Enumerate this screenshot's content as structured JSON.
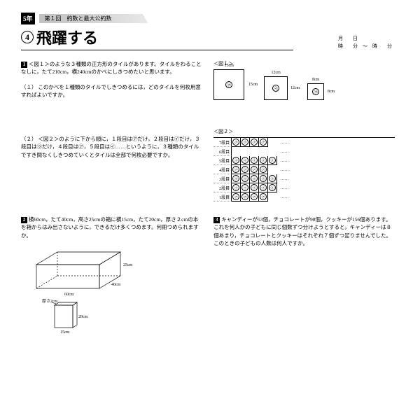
{
  "header": {
    "grade": "5年",
    "lesson": "第１回　約数と最大公約数",
    "level_num": "4",
    "level_title": "飛躍する",
    "date_line1": "月　　日",
    "date_line2": "時　　分　～　時　　分"
  },
  "p1": {
    "num": "1",
    "text": "＜図１＞のような３種類の正方形のタイルがあります。タイルをわることなしに，たて210cm，横240cmのかべにしきつめたいと思います。",
    "q1_label": "（１）",
    "q1": "このかべを１種類のタイルでしきつめるには，どのタイルを何枚用意すればよいですか。",
    "q2_label": "（２）",
    "q2": "＜図２＞のように下から順に，１段目は㋐だけ，２段目は㋑だけ，３段目は㋒だけ，４段目は㋐，５段目は㋑……というように，３種類のタイルですき間なくしきつめていくとタイルは全部で何枚必要ですか。",
    "fig1_label": "＜図１＞",
    "fig2_label": "＜図２＞",
    "tiles": {
      "a": {
        "size": 42,
        "wlabel": "15cm",
        "hlabel": "15cm",
        "mark": "㋐"
      },
      "b": {
        "size": 32,
        "wlabel": "12cm",
        "hlabel": "12cm",
        "mark": "㋑"
      },
      "c": {
        "size": 22,
        "wlabel": "8cm",
        "hlabel": "8cm",
        "mark": "㋒"
      }
    },
    "gridRows": [
      {
        "h": "7段目",
        "cells": [
          "㋐",
          "㋐",
          "㋐",
          "㋐",
          ""
        ],
        "dots": "……"
      },
      {
        "h": "6段目",
        "cells": [
          "",
          "",
          "",
          "",
          ""
        ],
        "dots": "……"
      },
      {
        "h": "5段目",
        "cells": [
          "㋑",
          "㋑",
          "㋑",
          "㋑",
          "㋑"
        ],
        "dots": "……"
      },
      {
        "h": "4段目",
        "cells": [
          "㋐",
          "㋐",
          "㋐",
          "㋐",
          ""
        ],
        "dots": "……"
      },
      {
        "h": "3段目",
        "cells": [
          "㋒",
          "㋒",
          "㋒",
          "㋒",
          "㋒"
        ],
        "dots": "……"
      },
      {
        "h": "2段目",
        "cells": [
          "㋑",
          "㋑",
          "㋑",
          "㋑",
          "㋑"
        ],
        "dots": "……"
      },
      {
        "h": "1段目",
        "cells": [
          "㋐",
          "㋐",
          "㋐",
          "㋐",
          ""
        ],
        "dots": "……"
      }
    ]
  },
  "p2": {
    "num": "2",
    "text": "横60cm，たて40cm，高さ25cmの箱に横15cm，たて20cm，厚さ２cmの本を箱からはみ出さないように，できるだけ多くつめます。何冊つめられますか。",
    "box": {
      "w": "60cm",
      "d": "40cm",
      "h": "25cm"
    },
    "book": {
      "w": "15cm",
      "d": "20cm",
      "t": "厚さ2cm"
    }
  },
  "p3": {
    "num": "3",
    "text": "キャンディーが53個，チョコレートが98個，クッキーが156個あります。これを何人かの子どもに同じ個数ずつ分けようとすると，キャンディーは８個あまり，チョコレートとクッキーはそれぞれ７個ずつ足りませんでした。このときの子どもの人数は何人ですか。"
  },
  "style": {
    "stroke": "#000",
    "strokeWidth": 0.7,
    "bg": "#ffffff"
  }
}
